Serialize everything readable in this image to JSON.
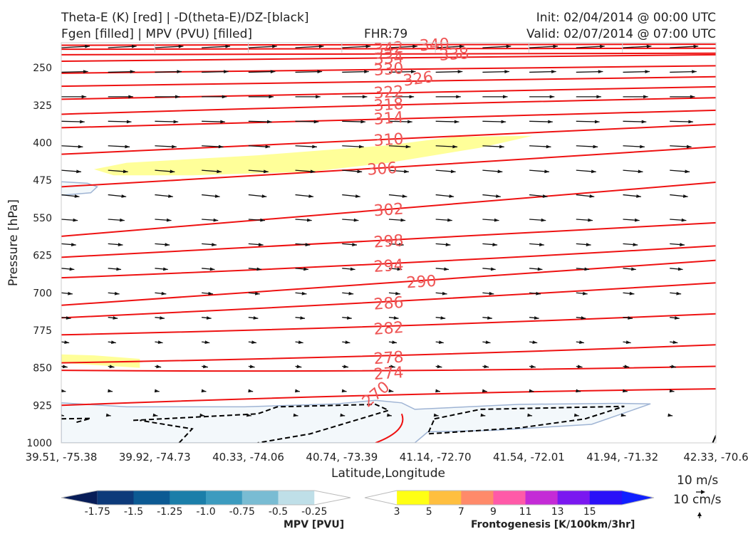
{
  "header": {
    "title_line1": "Theta-E (K) [red] | -D(theta-E)/DZ-[black]",
    "title_line2": "Fgen [filled] | MPV (PVU) [filled]",
    "fhr": "FHR:79",
    "init": "Init: 02/04/2014 @ 00:00 UTC",
    "valid": "Valid: 02/07/2014 @ 07:00 UTC"
  },
  "colors": {
    "theta_e": "#ee1111",
    "theta_e_label": "#ee5555",
    "stability": "#000000",
    "mpv_outline": "#9fb4d4",
    "mpv_fill": "#f3f8fb",
    "fgen_fill": "#ffff99"
  },
  "chart_data": {
    "type": "cross-section",
    "xlabel": "Latitude,Longitude",
    "ylabel": "Pressure [hPa]",
    "x_ticks": [
      "39.51, -75.38",
      "39.92, -74.73",
      "40.33, -74.06",
      "40.74, -73.39",
      "41.14, -72.70",
      "41.54, -72.01",
      "41.94, -71.32",
      "42.33, -70.6"
    ],
    "y_ticks": [
      250,
      325,
      400,
      475,
      550,
      625,
      700,
      775,
      850,
      925,
      1000
    ],
    "ylim": [
      1000,
      200
    ],
    "theta_e_levels": [
      342,
      340,
      338,
      334,
      330,
      326,
      322,
      318,
      314,
      310,
      306,
      302,
      298,
      294,
      290,
      286,
      282,
      278,
      274,
      270
    ],
    "theta_e_labels": [
      {
        "value": "342",
        "x": 0.5,
        "p": 210
      },
      {
        "value": "340",
        "x": 0.57,
        "p": 203
      },
      {
        "value": "338",
        "x": 0.6,
        "p": 222
      },
      {
        "value": "334",
        "x": 0.5,
        "p": 230
      },
      {
        "value": "330",
        "x": 0.5,
        "p": 252
      },
      {
        "value": "326",
        "x": 0.545,
        "p": 271
      },
      {
        "value": "322",
        "x": 0.5,
        "p": 298
      },
      {
        "value": "318",
        "x": 0.5,
        "p": 323
      },
      {
        "value": "314",
        "x": 0.5,
        "p": 350
      },
      {
        "value": "310",
        "x": 0.5,
        "p": 393
      },
      {
        "value": "306",
        "x": 0.49,
        "p": 451
      },
      {
        "value": "302",
        "x": 0.5,
        "p": 533
      },
      {
        "value": "298",
        "x": 0.5,
        "p": 596
      },
      {
        "value": "294",
        "x": 0.5,
        "p": 645
      },
      {
        "value": "290",
        "x": 0.55,
        "p": 677
      },
      {
        "value": "286",
        "x": 0.5,
        "p": 720
      },
      {
        "value": "282",
        "x": 0.5,
        "p": 770
      },
      {
        "value": "278",
        "x": 0.5,
        "p": 829
      },
      {
        "value": "274",
        "x": 0.5,
        "p": 860
      },
      {
        "value": "270",
        "x": 0.48,
        "p": 902
      }
    ],
    "theta_e_lines": [
      {
        "left": 205,
        "mid": 204,
        "right": 203
      },
      {
        "left": 213,
        "mid": 212,
        "right": 211
      },
      {
        "left": 224,
        "mid": 222,
        "right": 221
      },
      {
        "left": 237,
        "mid": 230,
        "right": 224
      },
      {
        "left": 261,
        "mid": 252,
        "right": 246
      },
      {
        "left": 287,
        "mid": 275,
        "right": 268
      },
      {
        "left": 313,
        "mid": 298,
        "right": 288
      },
      {
        "left": 343,
        "mid": 323,
        "right": 310
      },
      {
        "left": 370,
        "mid": 350,
        "right": 335
      },
      {
        "left": 423,
        "mid": 393,
        "right": 363
      },
      {
        "left": 488,
        "mid": 451,
        "right": 408
      },
      {
        "left": 587,
        "mid": 533,
        "right": 479
      },
      {
        "left": 629,
        "mid": 596,
        "right": 560
      },
      {
        "left": 670,
        "mid": 645,
        "right": 606
      },
      {
        "left": 725,
        "mid": 680,
        "right": 635
      },
      {
        "left": 750,
        "mid": 720,
        "right": 680
      },
      {
        "left": 784,
        "mid": 770,
        "right": 742
      },
      {
        "left": 840,
        "mid": 829,
        "right": 804
      },
      {
        "left": 855,
        "mid": 860,
        "right": 847
      },
      {
        "left": 925,
        "mid": 900,
        "right": 892
      }
    ],
    "mpv_colorbar": {
      "label": "MPV [PVU]",
      "ticks": [
        "-1.75",
        "-1.5",
        "-1.25",
        "-1.0",
        "-0.75",
        "-0.5",
        "-0.25"
      ],
      "colors": [
        "#081d58",
        "#0d3a7a",
        "#0c5a93",
        "#1b7ea9",
        "#3c9bbf",
        "#79bcd3",
        "#bfdfe8",
        "#ffffff"
      ]
    },
    "fgen_colorbar": {
      "label": "Frontogenesis [K/100km/3hr]",
      "ticks": [
        "3",
        "5",
        "7",
        "9",
        "11",
        "13",
        "15"
      ],
      "colors": [
        "#ffffff",
        "#ffff14",
        "#ffbf3f",
        "#ff8a6a",
        "#ff5aa8",
        "#c42bd6",
        "#7a18f0",
        "#2a10f8",
        "#1020ff"
      ]
    },
    "wind_key": {
      "horizontal": "10 m/s",
      "vertical": "10 cm/s"
    }
  }
}
